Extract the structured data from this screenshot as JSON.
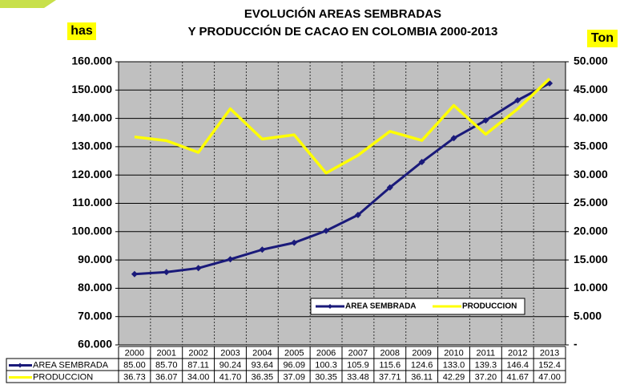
{
  "chart_data": {
    "type": "line",
    "title": "EVOLUCIÓN AREAS SEMBRADAS",
    "subtitle": "Y PRODUCCIÓN DE CACAO EN COLOMBIA 2000-2013",
    "y_label": "has",
    "y2_label": "Ton",
    "categories": [
      "2000",
      "2001",
      "2002",
      "2003",
      "2004",
      "2005",
      "2006",
      "2007",
      "2008",
      "2009",
      "2010",
      "2011",
      "2012",
      "2013"
    ],
    "series": [
      {
        "name": "AREA SEMBRADA",
        "color": "#1a1a7a",
        "axis": "y",
        "values": [
          85000,
          85700,
          87110,
          90240,
          93640,
          96090,
          100300,
          105900,
          115600,
          124600,
          133000,
          139300,
          146400,
          152400
        ],
        "value_labels": [
          "85.00",
          "85.70",
          "87.11",
          "90.24",
          "93.64",
          "96.09",
          "100.3",
          "105.9",
          "115.6",
          "124.6",
          "133.0",
          "139.3",
          "146.4",
          "152.4"
        ]
      },
      {
        "name": "PRODUCCION",
        "color": "#ffff00",
        "axis": "y2",
        "values": [
          36730,
          36070,
          34000,
          41700,
          36350,
          37090,
          30350,
          33480,
          37710,
          36110,
          42290,
          37200,
          41670,
          47000
        ],
        "value_labels": [
          "36.73",
          "36.07",
          "34.00",
          "41.70",
          "36.35",
          "37.09",
          "30.35",
          "33.48",
          "37.71",
          "36.11",
          "42.29",
          "37.20",
          "41.67",
          "47.00"
        ]
      }
    ],
    "ylim": [
      60000,
      160000
    ],
    "yticks": [
      {
        "value": 60000,
        "label": "60.000"
      },
      {
        "value": 70000,
        "label": "70.000"
      },
      {
        "value": 80000,
        "label": "80.000"
      },
      {
        "value": 90000,
        "label": "90.000"
      },
      {
        "value": 100000,
        "label": "100.000"
      },
      {
        "value": 110000,
        "label": "110.000"
      },
      {
        "value": 120000,
        "label": "120.000"
      },
      {
        "value": 130000,
        "label": "130.000"
      },
      {
        "value": 140000,
        "label": "140.000"
      },
      {
        "value": 150000,
        "label": "150.000"
      },
      {
        "value": 160000,
        "label": "160.000"
      }
    ],
    "y2lim": [
      0,
      50000
    ],
    "y2ticks": [
      {
        "value": 0,
        "label": "-"
      },
      {
        "value": 5000,
        "label": "5.000"
      },
      {
        "value": 10000,
        "label": "10.000"
      },
      {
        "value": 15000,
        "label": "15.000"
      },
      {
        "value": 20000,
        "label": "20.000"
      },
      {
        "value": 25000,
        "label": "25.000"
      },
      {
        "value": 30000,
        "label": "30.000"
      },
      {
        "value": 35000,
        "label": "35.000"
      },
      {
        "value": 40000,
        "label": "40.000"
      },
      {
        "value": 45000,
        "label": "45.000"
      },
      {
        "value": 50000,
        "label": "50.000"
      }
    ],
    "grid": true
  }
}
